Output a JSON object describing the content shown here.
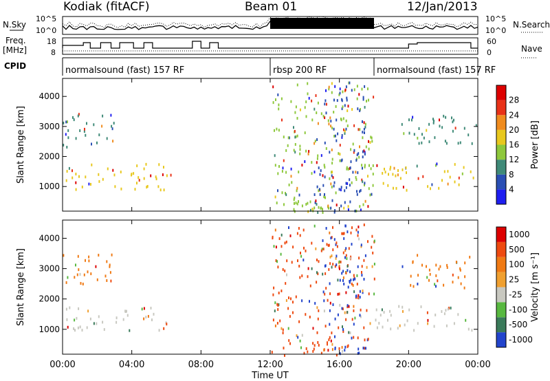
{
  "header": {
    "station": "Kodiak (fitACF)",
    "beam": "Beam 01",
    "date": "12/Jan/2013"
  },
  "strip_labels": {
    "nsky": "N.Sky",
    "nsearch": "N.Search",
    "freq": "Freq.",
    "freq_unit": "[MHz]",
    "nave": "Nave",
    "cpid": "CPID",
    "noise_ticks_left": [
      "10^5",
      "10^0"
    ],
    "noise_ticks_right": [
      "10^5",
      "10^0"
    ],
    "freq_ticks_left": [
      "18",
      "8"
    ],
    "nave_ticks_right": [
      "60",
      "0"
    ]
  },
  "cpid_segments": [
    {
      "label": "normalsound (fast) 157 RF",
      "start_h": 0,
      "end_h": 12
    },
    {
      "label": "rbsp 200 RF",
      "start_h": 12,
      "end_h": 18
    },
    {
      "label": "normalsound (fast) 157 RF",
      "start_h": 18,
      "end_h": 24
    }
  ],
  "chart_data": [
    {
      "type": "heatmap",
      "panel": "power",
      "xlabel": "",
      "ylabel": "Slant Range [km]",
      "xlim": [
        0,
        24
      ],
      "ylim": [
        180,
        4600
      ],
      "yticks": [
        1000,
        2000,
        3000,
        4000
      ],
      "colorbar": {
        "label": "Power [dB]",
        "ticks": [
          "4",
          "8",
          "12",
          "16",
          "20",
          "24",
          "28"
        ],
        "colors": [
          "#1e1ef0",
          "#2a4fb4",
          "#3f8a78",
          "#8ec83c",
          "#e8c81e",
          "#f08c1e",
          "#e83218",
          "#dd0000"
        ]
      },
      "scatter_regions": [
        {
          "x0": 0.0,
          "x1": 6.3,
          "y0": 900,
          "y1": 1800,
          "color": "#e8c81e"
        },
        {
          "x0": 0.0,
          "x1": 3.0,
          "y0": 2300,
          "y1": 3500,
          "color": "#3f8a78"
        },
        {
          "x0": 12.0,
          "x1": 18.0,
          "y0": 180,
          "y1": 4500,
          "color": "#8ec83c"
        },
        {
          "x0": 14.5,
          "x1": 17.5,
          "y0": 180,
          "y1": 4500,
          "color": "#2a4fb4"
        },
        {
          "x0": 18.0,
          "x1": 24.0,
          "y0": 900,
          "y1": 1800,
          "color": "#e8c81e"
        },
        {
          "x0": 19.5,
          "x1": 24.0,
          "y0": 2400,
          "y1": 3400,
          "color": "#3f8a78"
        }
      ]
    },
    {
      "type": "heatmap",
      "panel": "velocity",
      "xlabel": "Time UT",
      "ylabel": "Slant Range [km]",
      "xlim": [
        0,
        24
      ],
      "ylim": [
        180,
        4600
      ],
      "xticks": [
        "00:00",
        "04:00",
        "08:00",
        "12:00",
        "16:00",
        "20:00",
        "00:00"
      ],
      "yticks": [
        1000,
        2000,
        3000,
        4000
      ],
      "colorbar": {
        "label": "Velocity [m s⁻¹]",
        "ticks": [
          "1000",
          "500",
          "100",
          "25",
          "-25",
          "-100",
          "-500",
          "-1000"
        ],
        "colors": [
          "#2244cc",
          "#3a7a5a",
          "#58b840",
          "#c8c8c0",
          "#f0a030",
          "#f07a14",
          "#ee4a10",
          "#dd0000"
        ]
      },
      "scatter_regions": [
        {
          "x0": 0.0,
          "x1": 6.0,
          "y0": 1000,
          "y1": 1800,
          "color": "#c8c8c0"
        },
        {
          "x0": 0.0,
          "x1": 3.0,
          "y0": 2400,
          "y1": 3500,
          "color": "#f07a14"
        },
        {
          "x0": 12.0,
          "x1": 18.0,
          "y0": 180,
          "y1": 4500,
          "color": "#ee4a10"
        },
        {
          "x0": 15.0,
          "x1": 17.5,
          "y0": 180,
          "y1": 4500,
          "color": "#2244cc"
        },
        {
          "x0": 18.0,
          "x1": 24.0,
          "y0": 1000,
          "y1": 1800,
          "color": "#c8c8c0"
        },
        {
          "x0": 19.5,
          "x1": 23.5,
          "y0": 2400,
          "y1": 3500,
          "color": "#f07a14"
        }
      ]
    }
  ]
}
